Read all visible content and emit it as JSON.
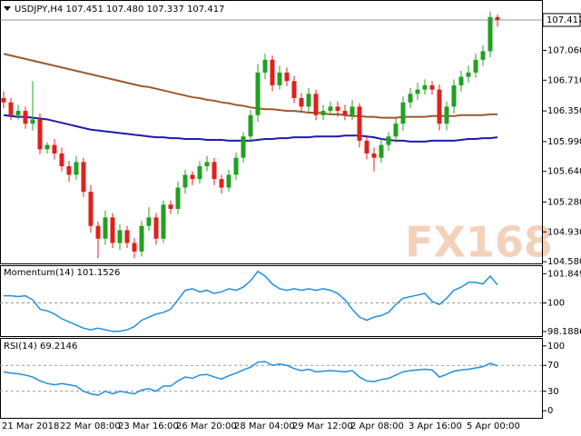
{
  "chart_data": [
    {
      "type": "candlestick",
      "title": "USDJPY,H4  107.451 107.480 107.337 107.417",
      "watermark": "FX168",
      "up_color": "#22a022",
      "down_color": "#e0201c",
      "categories": [
        "21 Mar 2018",
        null,
        null,
        null,
        null,
        null,
        null,
        null,
        "22 Mar 08:00",
        null,
        null,
        null,
        null,
        null,
        null,
        null,
        "23 Mar 16:00",
        null,
        null,
        null,
        null,
        null,
        null,
        null,
        "26 Mar 20:00",
        null,
        null,
        null,
        null,
        null,
        null,
        null,
        "28 Mar 04:00",
        null,
        null,
        null,
        null,
        null,
        null,
        null,
        "29 Mar 12:00",
        null,
        null,
        null,
        null,
        null,
        null,
        null,
        "2 Apr 08:00",
        null,
        null,
        null,
        null,
        null,
        null,
        null,
        "3 Apr 16:00",
        null,
        null,
        null,
        null,
        null,
        null,
        null,
        "5 Apr 00:00",
        null,
        null,
        null,
        null
      ],
      "open": [
        106.5,
        106.45,
        106.3,
        106.35,
        106.2,
        106.25,
        105.9,
        105.95,
        105.85,
        105.7,
        105.6,
        105.75,
        105.4,
        105.0,
        104.85,
        105.1,
        104.8,
        104.95,
        104.8,
        104.7,
        105.0,
        105.1,
        104.85,
        105.25,
        105.2,
        105.45,
        105.6,
        105.55,
        105.7,
        105.75,
        105.55,
        105.45,
        105.6,
        105.8,
        106.05,
        106.3,
        106.8,
        106.95,
        106.65,
        106.8,
        106.7,
        106.5,
        106.4,
        106.55,
        106.3,
        106.35,
        106.4,
        106.35,
        106.3,
        106.4,
        106.0,
        105.85,
        105.8,
        105.95,
        106.05,
        106.2,
        106.45,
        106.55,
        106.6,
        106.65,
        106.6,
        106.2,
        106.4,
        106.65,
        106.75,
        106.8,
        106.95,
        107.05,
        107.451
      ],
      "high": [
        106.58,
        106.5,
        106.42,
        106.4,
        106.7,
        106.32,
        105.98,
        106.02,
        105.92,
        105.76,
        105.82,
        105.8,
        105.48,
        105.05,
        105.18,
        105.15,
        105.02,
        105.0,
        104.86,
        105.06,
        105.22,
        105.15,
        105.3,
        105.3,
        105.52,
        105.66,
        105.64,
        105.76,
        105.82,
        105.8,
        105.6,
        105.66,
        105.86,
        106.1,
        106.36,
        106.9,
        107.02,
        107.0,
        106.88,
        106.86,
        106.76,
        106.56,
        106.62,
        106.6,
        106.42,
        106.46,
        106.46,
        106.42,
        106.48,
        106.44,
        106.05,
        105.92,
        106.02,
        106.1,
        106.26,
        106.52,
        106.62,
        106.68,
        106.72,
        106.7,
        106.66,
        106.46,
        106.72,
        106.82,
        106.88,
        107.02,
        107.12,
        107.52,
        107.48
      ],
      "low": [
        106.38,
        106.24,
        106.25,
        106.14,
        106.12,
        105.84,
        105.85,
        105.78,
        105.64,
        105.52,
        105.54,
        105.34,
        104.92,
        104.62,
        104.78,
        104.74,
        104.72,
        104.74,
        104.62,
        104.64,
        104.94,
        104.78,
        104.8,
        105.14,
        105.14,
        105.38,
        105.48,
        105.5,
        105.64,
        105.48,
        105.38,
        105.4,
        105.54,
        105.74,
        105.98,
        106.22,
        106.72,
        106.58,
        106.6,
        106.64,
        106.44,
        106.34,
        106.34,
        106.24,
        106.24,
        106.3,
        106.28,
        106.24,
        106.24,
        105.92,
        105.78,
        105.64,
        105.74,
        105.88,
        105.98,
        106.12,
        106.38,
        106.48,
        106.54,
        106.54,
        106.12,
        106.12,
        106.32,
        106.58,
        106.68,
        106.74,
        106.88,
        106.98,
        107.337
      ],
      "close": [
        106.45,
        106.3,
        106.35,
        106.2,
        106.25,
        105.9,
        105.95,
        105.85,
        105.7,
        105.6,
        105.75,
        105.4,
        105.0,
        104.85,
        105.1,
        104.8,
        104.95,
        104.8,
        104.7,
        105.0,
        105.1,
        104.85,
        105.25,
        105.2,
        105.45,
        105.6,
        105.55,
        105.7,
        105.75,
        105.55,
        105.45,
        105.6,
        105.8,
        106.05,
        106.3,
        106.8,
        106.95,
        106.65,
        106.8,
        106.7,
        106.5,
        106.4,
        106.55,
        106.3,
        106.35,
        106.4,
        106.35,
        106.3,
        106.4,
        106.0,
        105.85,
        105.8,
        105.95,
        106.05,
        106.2,
        106.45,
        106.55,
        106.6,
        106.65,
        106.6,
        106.2,
        106.4,
        106.65,
        106.75,
        106.8,
        106.95,
        107.05,
        107.451,
        107.417
      ],
      "series": [
        {
          "color": "#9c5a2c",
          "values": [
            107.02,
            107.0,
            106.98,
            106.96,
            106.94,
            106.92,
            106.9,
            106.88,
            106.86,
            106.84,
            106.82,
            106.8,
            106.78,
            106.76,
            106.74,
            106.72,
            106.7,
            106.68,
            106.66,
            106.64,
            106.63,
            106.61,
            106.59,
            106.57,
            106.55,
            106.53,
            106.51,
            106.5,
            106.48,
            106.47,
            106.45,
            106.44,
            106.42,
            106.41,
            106.39,
            106.38,
            106.37,
            106.37,
            106.36,
            106.35,
            106.35,
            106.34,
            106.33,
            106.33,
            106.32,
            106.31,
            106.31,
            106.3,
            106.29,
            106.29,
            106.28,
            106.28,
            106.27,
            106.27,
            106.27,
            106.28,
            106.28,
            106.28,
            106.28,
            106.29,
            106.29,
            106.29,
            106.29,
            106.3,
            106.3,
            106.3,
            106.3,
            106.31,
            106.31
          ]
        },
        {
          "color": "#1c1caa",
          "values": [
            106.3,
            106.29,
            106.28,
            106.28,
            106.27,
            106.26,
            106.25,
            106.23,
            106.21,
            106.19,
            106.17,
            106.15,
            106.13,
            106.12,
            106.11,
            106.1,
            106.09,
            106.08,
            106.07,
            106.06,
            106.05,
            106.04,
            106.04,
            106.03,
            106.03,
            106.02,
            106.02,
            106.02,
            106.01,
            106.01,
            106.01,
            106.0,
            106.0,
            106.0,
            106.0,
            106.01,
            106.02,
            106.02,
            106.03,
            106.03,
            106.04,
            106.04,
            106.04,
            106.05,
            106.05,
            106.05,
            106.05,
            106.06,
            106.06,
            106.06,
            106.05,
            106.04,
            106.02,
            106.01,
            106.0,
            106.0,
            105.99,
            105.99,
            105.99,
            106.0,
            106.0,
            106.0,
            106.0,
            106.01,
            106.02,
            106.02,
            106.03,
            106.03,
            106.04
          ]
        }
      ],
      "ylim": [
        104.56,
        107.63
      ],
      "yticks": [
        {
          "value": 107.06,
          "label": "107.060"
        },
        {
          "value": 106.71,
          "label": "106.710"
        },
        {
          "value": 106.35,
          "label": "106.350"
        },
        {
          "value": 105.99,
          "label": "105.990"
        },
        {
          "value": 105.64,
          "label": "105.640"
        },
        {
          "value": 105.28,
          "label": "105.280"
        },
        {
          "value": 104.93,
          "label": "104.930"
        },
        {
          "value": 104.58,
          "label": "104.580"
        }
      ]
    },
    {
      "type": "line",
      "title": "Momentum(14) 101.1526",
      "color": "#1e8fe0",
      "values": [
        100.45,
        100.45,
        100.4,
        100.45,
        100.2,
        99.6,
        99.5,
        99.3,
        99.0,
        98.8,
        98.6,
        98.4,
        98.3,
        98.4,
        98.3,
        98.2,
        98.2,
        98.3,
        98.5,
        98.9,
        99.1,
        99.3,
        99.4,
        99.6,
        100.2,
        100.8,
        100.9,
        100.7,
        100.8,
        100.6,
        100.7,
        100.9,
        100.8,
        101.0,
        101.4,
        102.0,
        101.7,
        101.2,
        100.9,
        100.8,
        100.9,
        100.8,
        100.9,
        100.8,
        100.9,
        100.8,
        100.6,
        100.2,
        99.6,
        99.1,
        98.9,
        99.1,
        99.2,
        99.4,
        99.9,
        100.3,
        100.4,
        100.5,
        100.6,
        100.1,
        99.9,
        100.3,
        100.8,
        101.0,
        101.3,
        101.3,
        101.2,
        101.7,
        101.1526
      ],
      "ylim": [
        97.9,
        102.33
      ],
      "yticks": [
        101.8494,
        100,
        98.1886
      ]
    },
    {
      "type": "line",
      "title": "RSI(14) 69.2146",
      "color": "#1e8fe0",
      "values": [
        60,
        58,
        57,
        55,
        52,
        46,
        42,
        40,
        42,
        40,
        38,
        30,
        26,
        24,
        30,
        26,
        30,
        28,
        26,
        32,
        34,
        30,
        38,
        38,
        46,
        52,
        50,
        55,
        56,
        52,
        49,
        54,
        58,
        63,
        67,
        75,
        76,
        70,
        72,
        70,
        65,
        62,
        64,
        60,
        61,
        62,
        61,
        60,
        62,
        52,
        46,
        45,
        48,
        50,
        55,
        60,
        62,
        63,
        64,
        63,
        52,
        56,
        61,
        63,
        64,
        66,
        68,
        73,
        69.2146
      ],
      "ylim": [
        -11,
        111
      ],
      "yticks": [
        100,
        70,
        30,
        0
      ]
    }
  ]
}
